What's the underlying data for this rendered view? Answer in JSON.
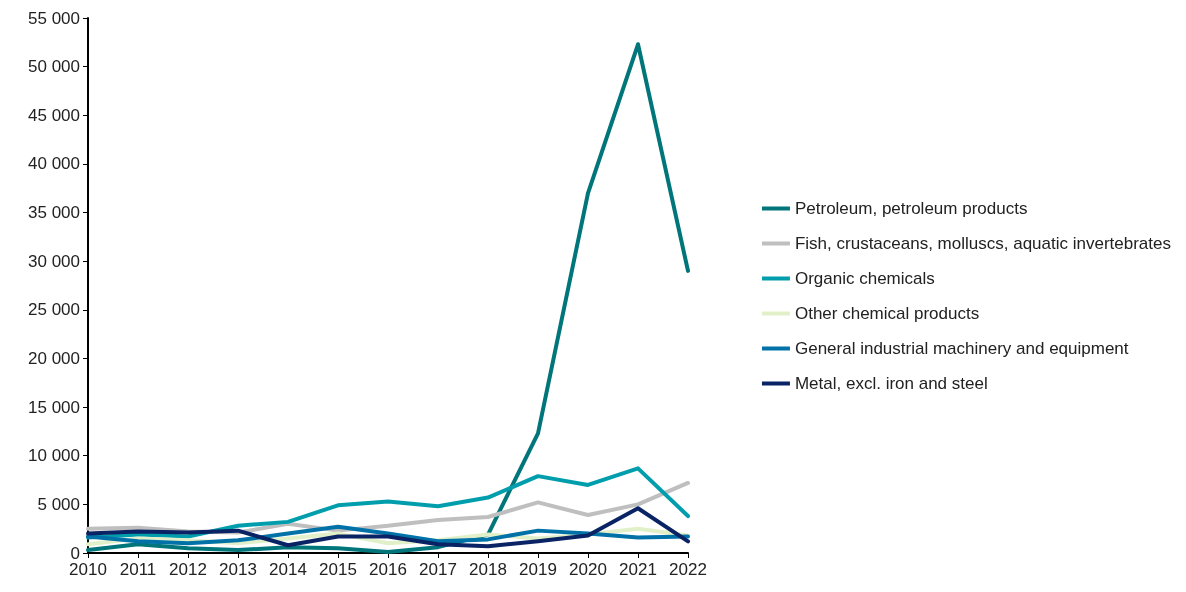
{
  "chart_data": {
    "type": "line",
    "categories": [
      "2010",
      "2011",
      "2012",
      "2013",
      "2014",
      "2015",
      "2016",
      "2017",
      "2018",
      "2019",
      "2020",
      "2021",
      "2022"
    ],
    "series": [
      {
        "name": "Petroleum, petroleum products",
        "color": "#00757a",
        "values": [
          300,
          900,
          500,
          300,
          600,
          500,
          100,
          600,
          1900,
          12300,
          37000,
          52300,
          29000
        ]
      },
      {
        "name": "Fish, crustaceans, molluscs, aquatic invertebrates",
        "color": "#bfbfbf",
        "values": [
          2500,
          2600,
          2200,
          2100,
          3000,
          2300,
          2800,
          3400,
          3700,
          5200,
          3900,
          5000,
          7200
        ]
      },
      {
        "name": "Organic chemicals",
        "color": "#009ead",
        "values": [
          1600,
          1900,
          1700,
          2800,
          3200,
          4900,
          5300,
          4800,
          5700,
          7900,
          7000,
          8700,
          3800
        ]
      },
      {
        "name": "Other chemical products",
        "color": "#e2f0c9",
        "values": [
          900,
          1500,
          1300,
          1000,
          1500,
          2000,
          1000,
          1300,
          1900,
          1500,
          1900,
          2500,
          1800
        ]
      },
      {
        "name": "General industrial machinery and equipment",
        "color": "#0072a8",
        "values": [
          1700,
          1200,
          1000,
          1300,
          2000,
          2700,
          2000,
          1200,
          1400,
          2300,
          2000,
          1600,
          1700
        ]
      },
      {
        "name": "Metal, excl. iron and steel",
        "color": "#0a2364",
        "values": [
          2000,
          2200,
          2100,
          2300,
          800,
          1700,
          1700,
          900,
          700,
          1200,
          1800,
          4600,
          1200
        ]
      }
    ],
    "ylim": [
      0,
      55000
    ],
    "yticks": [
      0,
      {
        "value": 5000,
        "label": "5 000"
      },
      {
        "value": 10000,
        "label": "10 000"
      },
      {
        "value": 15000,
        "label": "15 000"
      },
      {
        "value": 20000,
        "label": "20 000"
      },
      {
        "value": 25000,
        "label": "25 000"
      },
      {
        "value": 30000,
        "label": "30 000"
      },
      {
        "value": 35000,
        "label": "35 000"
      },
      {
        "value": 40000,
        "label": "40 000"
      },
      {
        "value": 45000,
        "label": "45 000"
      },
      {
        "value": 50000,
        "label": "50 000"
      },
      {
        "value": 55000,
        "label": "55 000"
      }
    ],
    "grid": false,
    "legend": "right",
    "marker": "none",
    "line_style": "solid"
  }
}
